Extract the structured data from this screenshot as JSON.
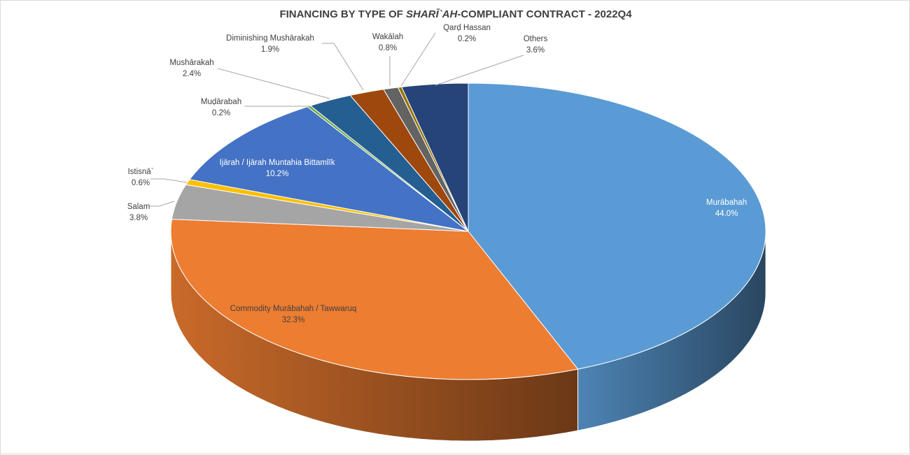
{
  "chart_data": {
    "type": "pie",
    "title_parts": [
      {
        "text": "FINANCING BY TYPE OF ",
        "italic": false
      },
      {
        "text": "SHARĪ`AH",
        "italic": true
      },
      {
        "text": "-COMPLIANT CONTRACT - 2022Q4",
        "italic": false
      }
    ],
    "slices": [
      {
        "name": "Murābahah",
        "value": 44.0,
        "label": "44.0%",
        "color": "#5b9bd5"
      },
      {
        "name": "Commodity Murābahah / Tawwaruq",
        "value": 32.3,
        "label": "32.3%",
        "color": "#ed7d31"
      },
      {
        "name": "Salam",
        "value": 3.8,
        "label": "3.8%",
        "color": "#a5a5a5"
      },
      {
        "name": "Istisnā`",
        "value": 0.6,
        "label": "0.6%",
        "color": "#ffc000"
      },
      {
        "name": "Ijārah / Ijārah Muntahia Bittamlīk",
        "value": 10.2,
        "label": "10.2%",
        "color": "#4472c4"
      },
      {
        "name": "Muḍārabah",
        "value": 0.2,
        "label": "0.2%",
        "color": "#70ad47"
      },
      {
        "name": "Mushārakah",
        "value": 2.4,
        "label": "2.4%",
        "color": "#255e91"
      },
      {
        "name": "Diminishing Mushārakah",
        "value": 1.9,
        "label": "1.9%",
        "color": "#9e480e"
      },
      {
        "name": "Wakālah",
        "value": 0.8,
        "label": "0.8%",
        "color": "#636363"
      },
      {
        "name": "Qarḍ Hassan",
        "value": 0.2,
        "label": "0.2%",
        "color": "#997300"
      },
      {
        "name": "Others",
        "value": 3.6,
        "label": "3.6%",
        "color": "#264478"
      }
    ],
    "style": "3d-pie",
    "start": "12 o'clock, clockwise",
    "legend": "none",
    "labels": "outside with leader lines, inside for large slices"
  }
}
